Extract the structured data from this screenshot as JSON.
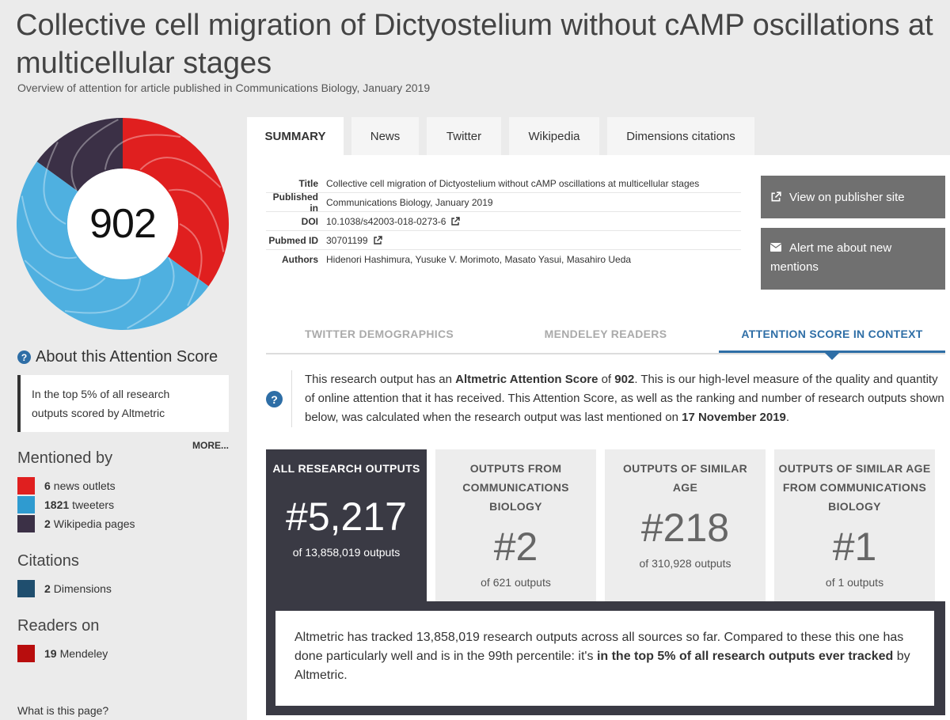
{
  "article": {
    "title": "Collective cell migration of Dictyostelium without cAMP oscillations at multicellular stages",
    "subtitle": "Overview of attention for article published in Communications Biology, January 2019"
  },
  "score": {
    "value": "902",
    "ring_colors": {
      "news": "#e01f1f",
      "twitter": "#4fb0e0",
      "wikipedia": "#3b3046"
    },
    "ring_shares": {
      "news": 0.35,
      "twitter": 0.5,
      "wikipedia": 0.15
    }
  },
  "about": {
    "title": "About this Attention Score",
    "box_line1": "In the top 5% of all research",
    "box_line2": "outputs scored by Altmetric",
    "more": "MORE..."
  },
  "mentioned_by": {
    "heading": "Mentioned by",
    "items": [
      {
        "count": "6",
        "label": "news outlets",
        "color": "#e01f1f"
      },
      {
        "count": "1821",
        "label": "tweeters",
        "color": "#2f9bd0"
      },
      {
        "count": "2",
        "label": "Wikipedia pages",
        "color": "#3b3046"
      }
    ]
  },
  "citations": {
    "heading": "Citations",
    "items": [
      {
        "count": "2",
        "label": "Dimensions",
        "color": "#1f4e6e"
      }
    ]
  },
  "readers": {
    "heading": "Readers on",
    "items": [
      {
        "count": "19",
        "label": "Mendeley",
        "color": "#b80d0d"
      }
    ]
  },
  "what_link": "What is this page?",
  "tabs": [
    "SUMMARY",
    "News",
    "Twitter",
    "Wikipedia",
    "Dimensions citations"
  ],
  "meta": {
    "rows": [
      {
        "label": "Title",
        "value": "Collective cell migration of Dictyostelium without cAMP oscillations at multicellular stages"
      },
      {
        "label": "Published in",
        "value": "Communications Biology, January 2019"
      },
      {
        "label": "DOI",
        "value": "10.1038/s42003-018-0273-6"
      },
      {
        "label": "Pubmed ID",
        "value": "30701199"
      },
      {
        "label": "Authors",
        "value": "Hidenori Hashimura, Yusuke V. Morimoto, Masato Yasui, Masahiro Ueda"
      }
    ]
  },
  "buttons": {
    "publisher": "View on publisher site",
    "alert_line1": "Alert me about new",
    "alert_line2": "mentions"
  },
  "subtabs": [
    "TWITTER DEMOGRAPHICS",
    "MENDELEY READERS",
    "ATTENTION SCORE IN CONTEXT"
  ],
  "context": {
    "p1": "This research output has an ",
    "b1": "Altmetric Attention Score",
    "p2": " of ",
    "b2": "902",
    "p3": ". This is our high-level measure of the quality and quantity of online attention that it has received. This Attention Score, as well as the ranking and number of research outputs shown below, was calculated when the research output was last mentioned on ",
    "b3": "17 November 2019",
    "p4": "."
  },
  "cards": [
    {
      "head": [
        "ALL RESEARCH OUTPUTS"
      ],
      "rank": "#5,217",
      "sub": "of 13,858,019 outputs"
    },
    {
      "head": [
        "OUTPUTS FROM",
        "COMMUNICATIONS",
        "BIOLOGY"
      ],
      "rank": "#2",
      "sub": "of 621 outputs"
    },
    {
      "head": [
        "OUTPUTS OF SIMILAR",
        "AGE"
      ],
      "rank": "#218",
      "sub": "of 310,928 outputs"
    },
    {
      "head": [
        "OUTPUTS OF SIMILAR AGE",
        "FROM COMMUNICATIONS",
        "BIOLOGY"
      ],
      "rank": "#1",
      "sub": "of 1 outputs"
    }
  ],
  "summary": {
    "p1": "Altmetric has tracked 13,858,019 research outputs across all sources so far. Compared to these this one has done particularly well and is in the 99th percentile: it's ",
    "b1": "in the top 5% of all research outputs ever tracked",
    "p2": " by Altmetric."
  }
}
